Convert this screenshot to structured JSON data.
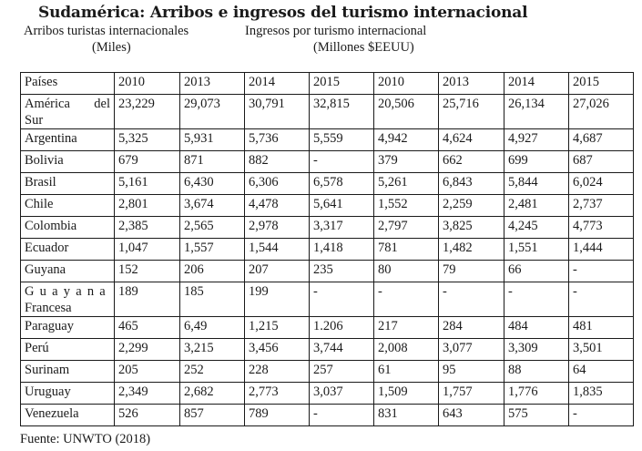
{
  "title": "Sudamérica: Arribos e ingresos del turismo internacional",
  "subtitles": {
    "arrivals_line1": "Arribos turistas internacionales",
    "arrivals_line2": "(Miles)",
    "income_line1": "Ingresos por turismo internacional",
    "income_line2": "(Millones $EEUU)"
  },
  "table": {
    "headers": [
      "Países",
      "2010",
      "2013",
      "2014",
      "2015",
      "2010",
      "2013",
      "2014",
      "2015"
    ],
    "rows": [
      {
        "country": "América del Sur",
        "values": [
          "23,229",
          "29,073",
          "30,791",
          "32,815",
          "20,506",
          "25,716",
          "26,134",
          "27,026"
        ]
      },
      {
        "country": "Argentina",
        "values": [
          "5,325",
          "5,931",
          "5,736",
          "5,559",
          "4,942",
          "4,624",
          "4,927",
          "4,687"
        ]
      },
      {
        "country": "Bolivia",
        "values": [
          "679",
          "871",
          "882",
          "-",
          "379",
          "662",
          "699",
          "687"
        ]
      },
      {
        "country": "Brasil",
        "values": [
          "5,161",
          "6,430",
          "6,306",
          "6,578",
          "5,261",
          "6,843",
          "5,844",
          "6,024"
        ]
      },
      {
        "country": "Chile",
        "values": [
          "2,801",
          "3,674",
          "4,478",
          "5,641",
          "1,552",
          "2,259",
          "2,481",
          "2,737"
        ]
      },
      {
        "country": "Colombia",
        "values": [
          "2,385",
          "2,565",
          "2,978",
          "3,317",
          "2,797",
          "3,825",
          "4,245",
          "4,773"
        ]
      },
      {
        "country": "Ecuador",
        "values": [
          "1,047",
          "1,557",
          "1,544",
          "1,418",
          "781",
          "1,482",
          "1,551",
          "1,444"
        ]
      },
      {
        "country": "Guyana",
        "values": [
          "152",
          "206",
          "207",
          "235",
          "80",
          "79",
          "66",
          "-"
        ]
      },
      {
        "country": "Guayana Francesa",
        "values": [
          "189",
          "185",
          "199",
          "-",
          "-",
          "-",
          "-",
          "-"
        ]
      },
      {
        "country": "Paraguay",
        "values": [
          "465",
          "6,49",
          "1,215",
          "1.206",
          "217",
          "284",
          "484",
          "481"
        ]
      },
      {
        "country": "Perú",
        "values": [
          "2,299",
          "3,215",
          "3,456",
          "3,744",
          "2,008",
          "3,077",
          "3,309",
          "3,501"
        ]
      },
      {
        "country": "Surinam",
        "values": [
          "205",
          "252",
          "228",
          "257",
          "61",
          "95",
          "88",
          "64"
        ]
      },
      {
        "country": "Uruguay",
        "values": [
          "2,349",
          "2,682",
          "2,773",
          "3,037",
          "1,509",
          "1,757",
          "1,776",
          "1,835"
        ]
      },
      {
        "country": "Venezuela",
        "values": [
          "526",
          "857",
          "789",
          "-",
          "831",
          "643",
          "575",
          "-"
        ]
      }
    ]
  },
  "source": "Fuente: UNWTO (2018)"
}
